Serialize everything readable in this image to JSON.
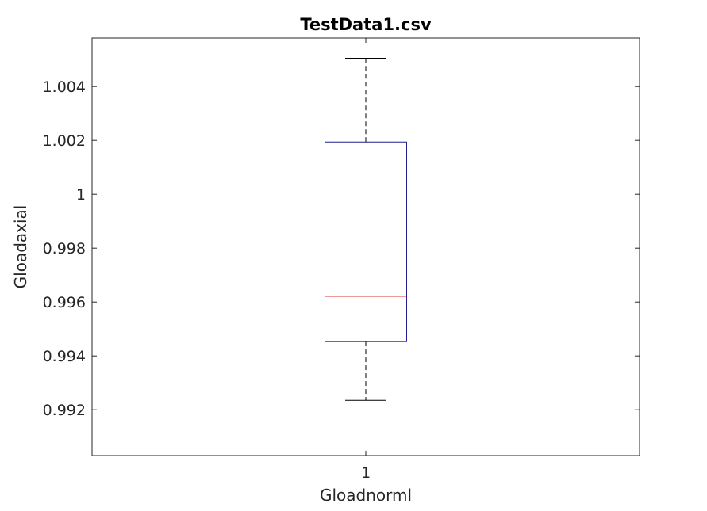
{
  "chart_data": {
    "type": "box",
    "title": "TestData1.csv",
    "xlabel": "Gloadnorml",
    "ylabel": "Gloadaxial",
    "categories": [
      "1"
    ],
    "ylim": [
      0.9903,
      1.0058
    ],
    "yticks": [
      0.992,
      0.994,
      0.996,
      0.998,
      1,
      1.002,
      1.004
    ],
    "ytick_labels": [
      "0.992",
      "0.994",
      "0.996",
      "0.998",
      "1",
      "1.002",
      "1.004"
    ],
    "boxes": [
      {
        "category": "1",
        "whisker_low": 0.99235,
        "q1": 0.99453,
        "median": 0.99621,
        "q3": 1.00194,
        "whisker_high": 1.00505
      }
    ],
    "grid": false,
    "colors": {
      "box": "#1f1f8f",
      "median": "#e03030",
      "whisker": "#000000",
      "axes": "#262626"
    }
  }
}
